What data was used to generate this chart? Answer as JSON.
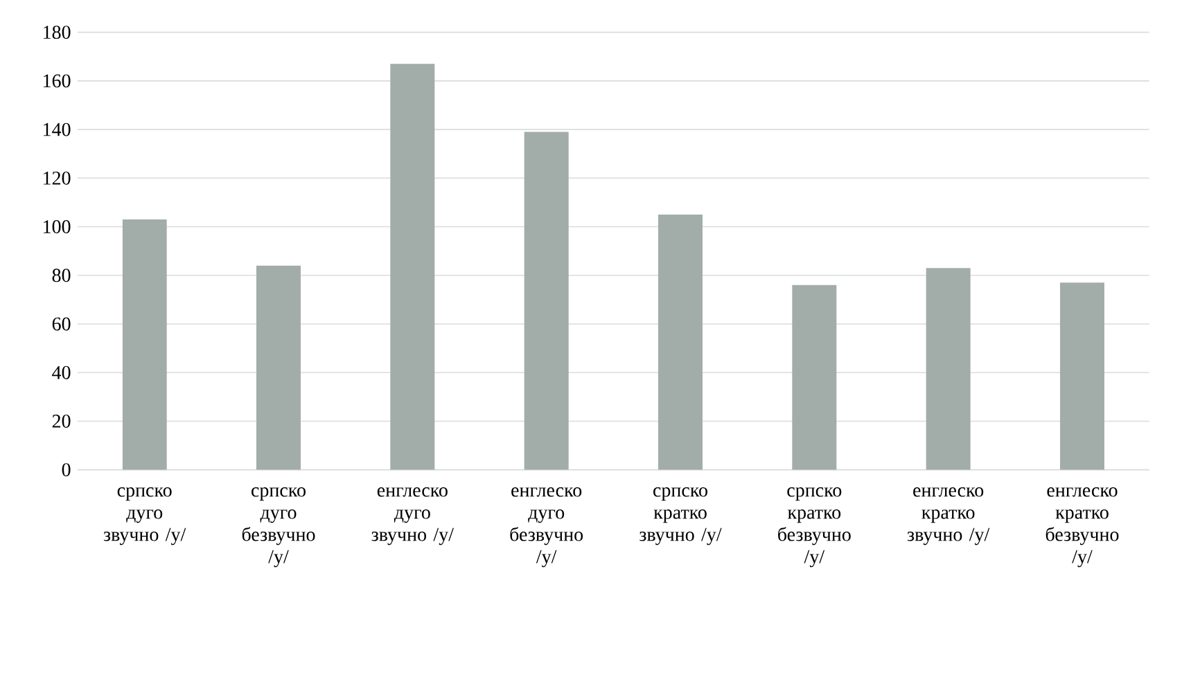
{
  "chart_data": {
    "type": "bar",
    "categories": [
      "српско дуго звучно /у/",
      "српско дуго безвучно /у/",
      "енглеско дуго звучно /у/",
      "енглеско дуго безвучно /у/",
      "српско кратко звучно /у/",
      "српско кратко безвучно /у/",
      "енглеско кратко звучно /у/",
      "енглеско кратко безвучно /у/"
    ],
    "values": [
      103,
      84,
      167,
      139,
      105,
      76,
      83,
      77
    ],
    "color": "#a2adaa",
    "ylim": [
      0,
      180
    ],
    "yticks": [
      0,
      20,
      40,
      60,
      80,
      100,
      120,
      140,
      160,
      180
    ],
    "grid": "y"
  }
}
